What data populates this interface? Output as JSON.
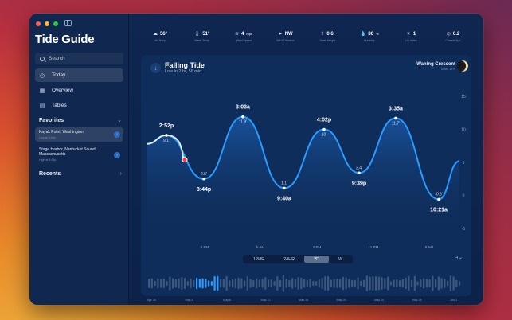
{
  "app": {
    "title": "Tide Guide"
  },
  "sidebar": {
    "search_placeholder": "Search",
    "nav": [
      {
        "label": "Today",
        "icon": "clock-icon",
        "active": true
      },
      {
        "label": "Overview",
        "icon": "grid-icon",
        "active": false
      },
      {
        "label": "Tables",
        "icon": "calendar-icon",
        "active": false
      }
    ],
    "favorites_heading": "Favorites",
    "favorites": [
      {
        "name": "Kayak Point, Washington",
        "sub": "Low at 9:44p",
        "active": true,
        "dir": "↓"
      },
      {
        "name": "Stage Harbor, Nantucket Sound, Massachusetts",
        "sub": "High at 8:06p",
        "active": false,
        "dir": "↑"
      }
    ],
    "recents_heading": "Recents"
  },
  "stats": [
    {
      "icon": "cloud-icon",
      "glyph": "☁",
      "value": "56°",
      "unit": "",
      "label": "Air Temp"
    },
    {
      "icon": "thermometer-icon",
      "glyph": "🌡",
      "value": "51°",
      "unit": "",
      "label": "Water Temp"
    },
    {
      "icon": "wind-icon",
      "glyph": "≋",
      "value": "4",
      "unit": "mph",
      "label": "Wind Speed"
    },
    {
      "icon": "navigation-arrow-icon",
      "glyph": "➤",
      "value": "NW",
      "unit": "",
      "label": "Wind Direction"
    },
    {
      "icon": "wave-height-icon",
      "glyph": "⇧",
      "value": "0.6'",
      "unit": "",
      "label": "Swell Height"
    },
    {
      "icon": "humidity-icon",
      "glyph": "💧",
      "value": "80",
      "unit": "%",
      "label": "Humidity"
    },
    {
      "icon": "sun-icon",
      "glyph": "☀",
      "value": "1",
      "unit": "",
      "label": "UV Index"
    },
    {
      "icon": "current-icon",
      "glyph": "◎",
      "value": "0.2",
      "unit": "",
      "label": "Current Spd"
    }
  ],
  "tide": {
    "title": "Falling Tide",
    "subtitle": "Low in 2 hr, 58 min",
    "moon_name": "Waning Crescent",
    "moon_sub": "Illum: 17%"
  },
  "chart_data": {
    "type": "line",
    "ylim": [
      -5,
      15
    ],
    "y_ticks": [
      15,
      10,
      5,
      0,
      -5
    ],
    "x_ticks": [
      "8 PM",
      "5 AM",
      "2 PM",
      "11 PM",
      "8 AM"
    ],
    "extremes": [
      {
        "time": "2:52p",
        "height": "9.1'",
        "value": 9.1,
        "kind": "high"
      },
      {
        "time": "8:44p",
        "height": "2.5'",
        "value": 2.5,
        "kind": "low"
      },
      {
        "time": "3:03a",
        "height": "11.9'",
        "value": 11.9,
        "kind": "high"
      },
      {
        "time": "9:40a",
        "height": "1.1'",
        "value": 1.1,
        "kind": "low"
      },
      {
        "time": "4:02p",
        "height": "10'",
        "value": 10,
        "kind": "high"
      },
      {
        "time": "9:39p",
        "height": "3.4'",
        "value": 3.4,
        "kind": "low"
      },
      {
        "time": "3:35a",
        "height": "11.7'",
        "value": 11.7,
        "kind": "high"
      },
      {
        "time": "10:21a",
        "height": "-0.6'",
        "value": -0.6,
        "kind": "low"
      }
    ]
  },
  "range_tabs": [
    {
      "label": "12HR",
      "active": false
    },
    {
      "label": "24HR",
      "active": false
    },
    {
      "label": "2D",
      "active": true
    },
    {
      "label": "W",
      "active": false
    }
  ],
  "timeline": {
    "labels": [
      "Apr 30",
      "May 4",
      "May 8",
      "May 12",
      "May 16",
      "May 20",
      "May 24",
      "May 28",
      "Jun 1"
    ]
  },
  "colors": {
    "accent": "#1a8fff",
    "current": "#ff3b30"
  }
}
